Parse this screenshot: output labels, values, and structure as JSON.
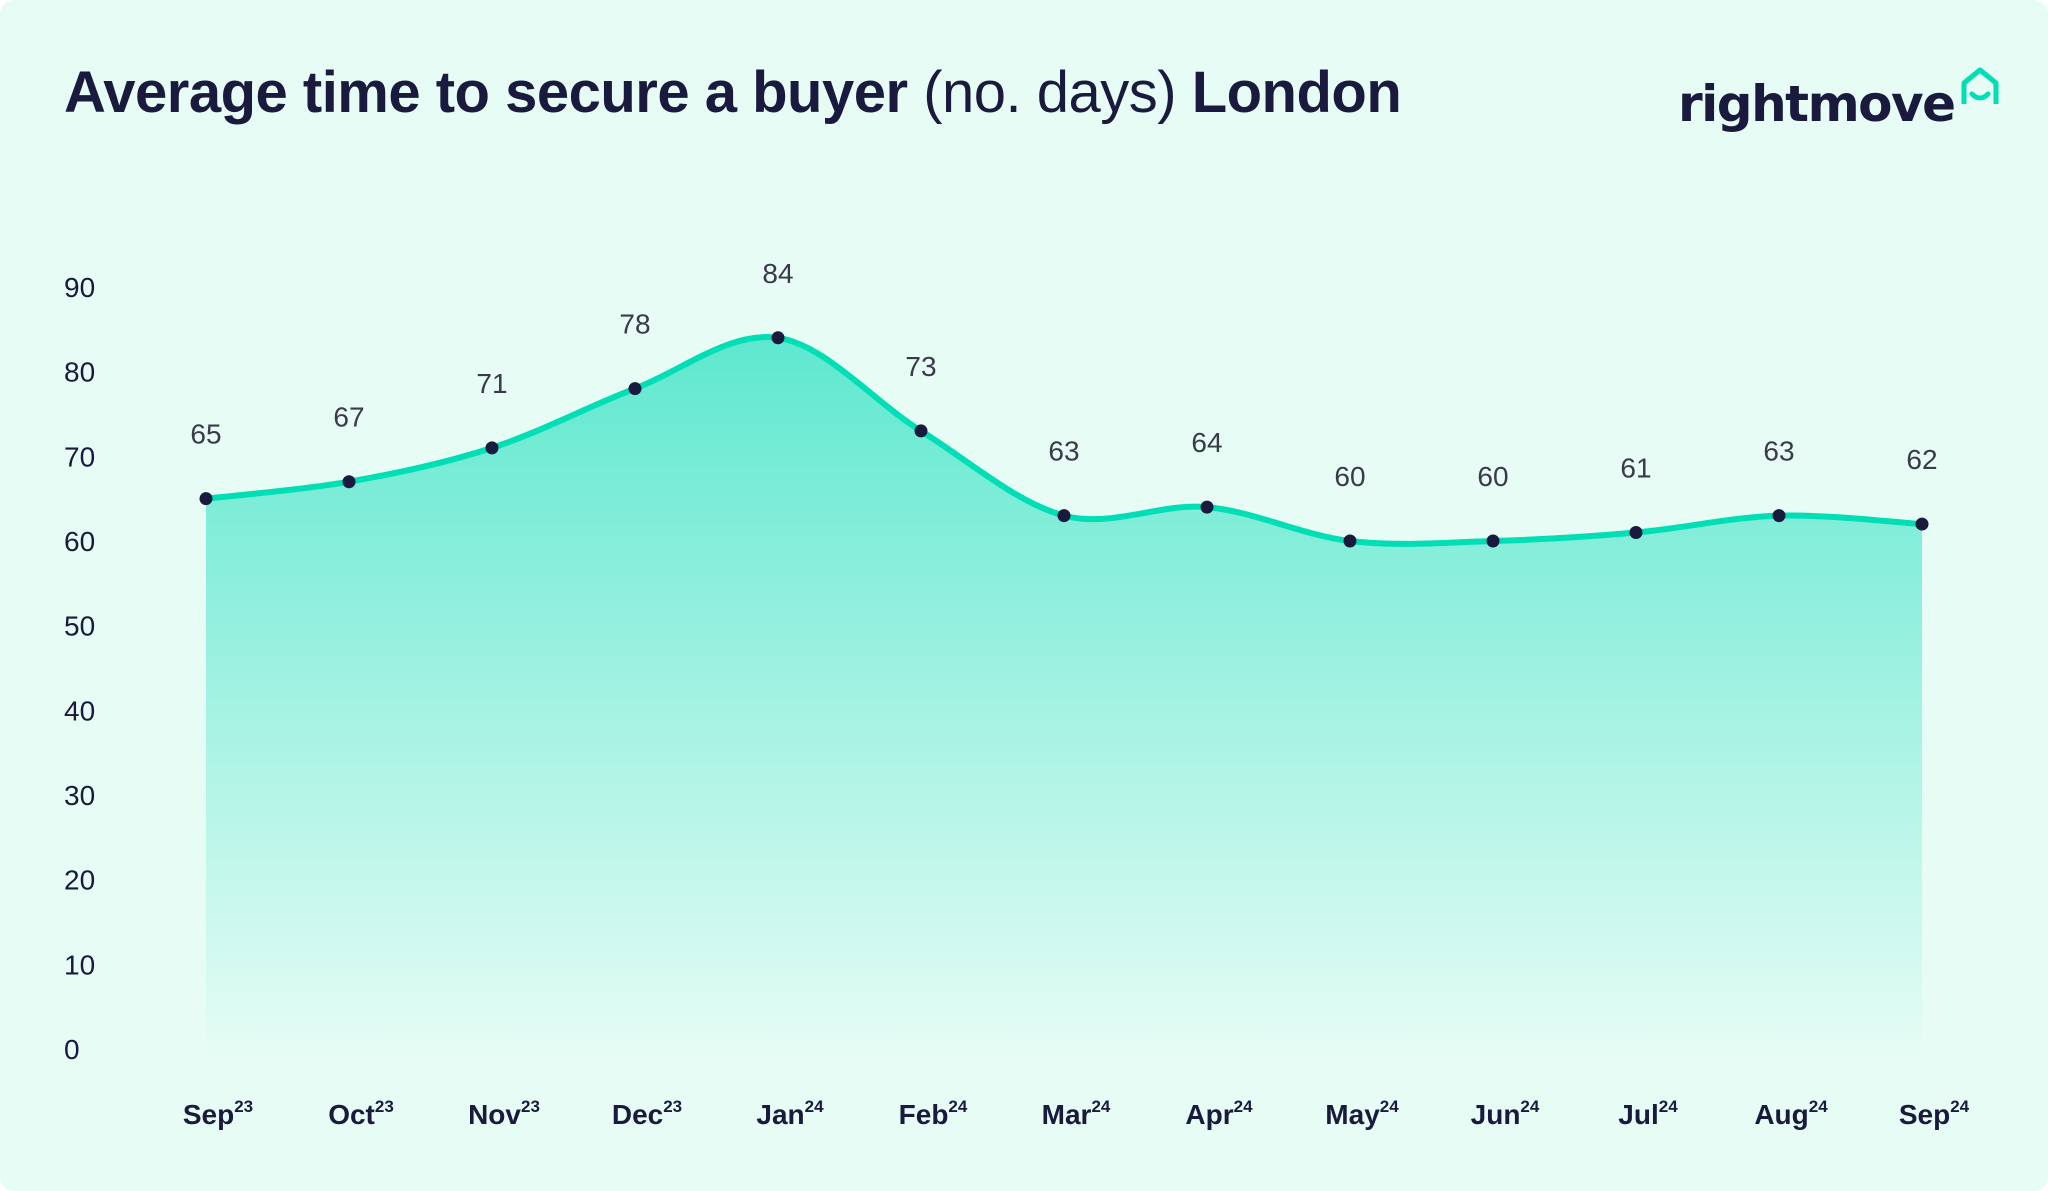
{
  "header": {
    "title_bold": "Average time to secure a buyer",
    "title_light": "(no. days)",
    "title_region": "London"
  },
  "logo": {
    "text": "rightmove",
    "icon": "house-icon",
    "icon_color": "#00deb6"
  },
  "colors": {
    "background": "#e6fcf5",
    "line": "#00deb6",
    "fill_top": "#5ee8cf",
    "fill_bottom": "#e6fcf5",
    "marker": "#1a1a3e",
    "text": "#1a1a3e"
  },
  "chart_data": {
    "type": "area",
    "title": "Average time to secure a buyer (no. days) London",
    "xlabel": "",
    "ylabel": "",
    "categories": [
      {
        "month": "Sep",
        "year": "23"
      },
      {
        "month": "Oct",
        "year": "23"
      },
      {
        "month": "Nov",
        "year": "23"
      },
      {
        "month": "Dec",
        "year": "23"
      },
      {
        "month": "Jan",
        "year": "24"
      },
      {
        "month": "Feb",
        "year": "24"
      },
      {
        "month": "Mar",
        "year": "24"
      },
      {
        "month": "Apr",
        "year": "24"
      },
      {
        "month": "May",
        "year": "24"
      },
      {
        "month": "Jun",
        "year": "24"
      },
      {
        "month": "Jul",
        "year": "24"
      },
      {
        "month": "Aug",
        "year": "24"
      },
      {
        "month": "Sep",
        "year": "24"
      }
    ],
    "values": [
      65,
      67,
      71,
      78,
      84,
      73,
      63,
      64,
      60,
      60,
      61,
      63,
      62
    ],
    "ylim": [
      0,
      90
    ],
    "yticks": [
      0,
      10,
      20,
      30,
      40,
      50,
      60,
      70,
      80,
      90
    ],
    "grid": false,
    "legend": "none",
    "data_labels": true
  }
}
